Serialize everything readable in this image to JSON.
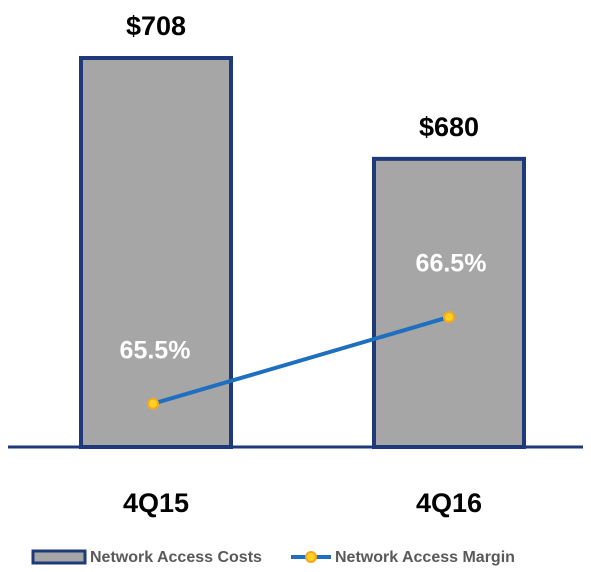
{
  "chart_data": {
    "type": "bar",
    "categories": [
      "4Q15",
      "4Q16"
    ],
    "ylim": [
      600,
      713
    ],
    "y2lim": [
      65,
      69.7
    ],
    "series": [
      {
        "name": "Network Access Costs",
        "type": "bar",
        "color": "#a6a6a6",
        "edge_color": "#1f3a7a",
        "values": [
          708,
          680
        ],
        "value_labels": [
          "$708",
          "$680"
        ]
      },
      {
        "name": "Network Access Margin",
        "type": "line",
        "axis": "y2",
        "color": "#1f6fc0",
        "marker_color": "#f5a623",
        "values": [
          65.5,
          66.5
        ],
        "value_labels": [
          "65.5%",
          "66.5%"
        ]
      }
    ]
  }
}
